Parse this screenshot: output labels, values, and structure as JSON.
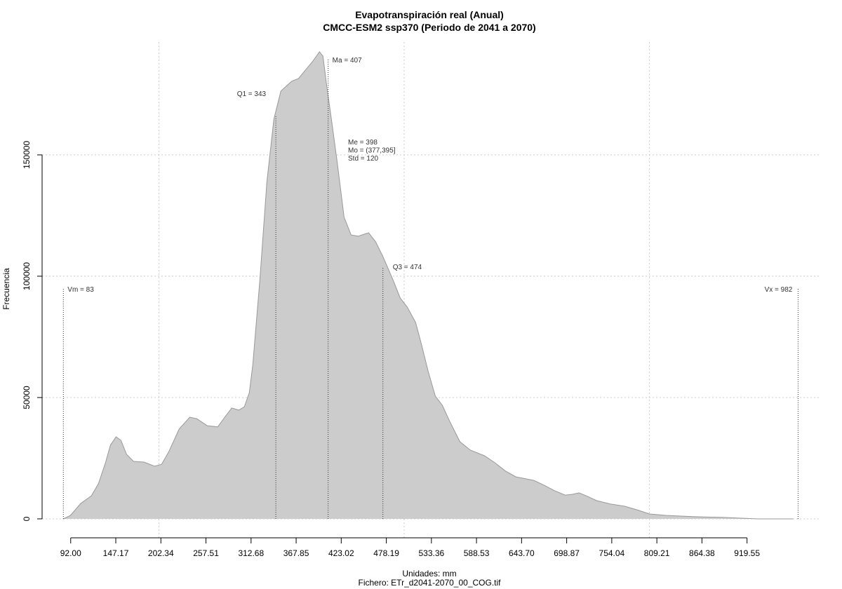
{
  "chart_data": {
    "type": "area",
    "title": "Evapotranspiración real (Anual)",
    "subtitle": "CMCC-ESM2 ssp370 (Periodo de 2041 a 2070)",
    "x_label": "Unidades: mm",
    "caption": "Fichero: ETr_d2041-2070_00_COG.tif",
    "y_label": "Frecuencia",
    "x": [
      83,
      91.6,
      104.5,
      117.3,
      125.9,
      134.5,
      140.5,
      147.4,
      153.4,
      160.3,
      168.9,
      181.7,
      194.6,
      203.2,
      211.8,
      224.7,
      237.6,
      246.2,
      259,
      271.9,
      280.5,
      289.1,
      297.7,
      304.5,
      310.5,
      314.8,
      323.4,
      332,
      340.6,
      349.2,
      362.1,
      370.7,
      379.3,
      387.8,
      396.4,
      400.7,
      405,
      411,
      417.9,
      426.5,
      435.1,
      443.7,
      456.5,
      465.1,
      473.7,
      486.6,
      495.2,
      503.8,
      514.1,
      520.9,
      529.5,
      538.1,
      546.7,
      555.3,
      568.2,
      581.1,
      598.3,
      611.1,
      624,
      636.9,
      658.3,
      671.2,
      684.1,
      697,
      705.6,
      714.1,
      722.7,
      735.6,
      752.8,
      770,
      787.1,
      800,
      821.5,
      855.8,
      890.2,
      933.1,
      976
    ],
    "values": [
      0,
      1400,
      6400,
      9500,
      14500,
      23100,
      30300,
      33800,
      32400,
      26600,
      23700,
      23400,
      21700,
      22500,
      27500,
      37000,
      41900,
      41300,
      38400,
      37900,
      41900,
      45700,
      44800,
      46200,
      52000,
      63600,
      98300,
      138700,
      164700,
      176300,
      180300,
      181500,
      185000,
      188400,
      192500,
      190700,
      179200,
      164700,
      147400,
      124300,
      117000,
      116500,
      117900,
      114200,
      108400,
      98300,
      91000,
      87300,
      80900,
      72300,
      60700,
      50600,
      46800,
      40500,
      31800,
      28300,
      26000,
      23100,
      19700,
      17300,
      15900,
      13900,
      11600,
      9800,
      10100,
      10700,
      9500,
      7500,
      6100,
      5200,
      3500,
      2000,
      1400,
      900,
      600,
      0,
      0
    ],
    "color": "#cccccc",
    "line_color": "#999999",
    "xlim": [
      57,
      1010
    ],
    "ylim": [
      -8100,
      196500
    ],
    "xticks": [
      {
        "value": 92,
        "label": "92.00"
      },
      147.17,
      202.34,
      257.51,
      312.68,
      367.85,
      423.02,
      478.19,
      533.36,
      588.53,
      {
        "value": 643.7,
        "label": "643.70"
      },
      698.87,
      754.04,
      809.21,
      864.38,
      919.55
    ],
    "yticks": [
      0,
      50000,
      100000,
      150000
    ],
    "x_grid": [
      200,
      500,
      800
    ],
    "grid": true,
    "markers": [
      {
        "label": "Vm = 83",
        "x": 83
      },
      {
        "label": "Q1 = 343",
        "x": 343
      },
      {
        "label": "Ma = 407",
        "x": 407
      },
      {
        "label": "Q3 = 474",
        "x": 474
      },
      {
        "label": "Vx = 982",
        "x": 982
      }
    ],
    "stats": [
      "Me = 398",
      "Mo = (377,395]",
      "Std = 120"
    ]
  }
}
